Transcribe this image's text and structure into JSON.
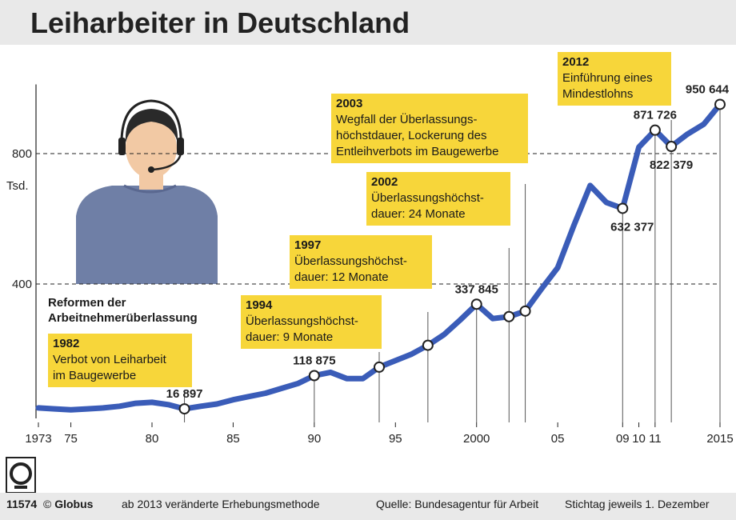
{
  "title": "Leiharbeiter in Deutschland",
  "chart_data": {
    "type": "line",
    "title": "Leiharbeiter in Deutschland",
    "ylabel": "Tsd.",
    "ylim": [
      0,
      1000
    ],
    "yticks": [
      400,
      800
    ],
    "x_tick_labels": [
      "1973",
      "75",
      "80",
      "85",
      "90",
      "95",
      "2000",
      "05",
      "09",
      "10",
      "11",
      "2015"
    ],
    "x_tick_years": [
      1973,
      1975,
      1980,
      1985,
      1990,
      1995,
      2000,
      2005,
      2009,
      2010,
      2011,
      2015
    ],
    "series": [
      {
        "name": "Leiharbeiter",
        "x": [
          1973,
          1974,
          1975,
          1976,
          1977,
          1978,
          1979,
          1980,
          1981,
          1982,
          1983,
          1984,
          1985,
          1986,
          1987,
          1988,
          1989,
          1990,
          1991,
          1992,
          1993,
          1994,
          1995,
          1996,
          1997,
          1998,
          1999,
          2000,
          2001,
          2002,
          2003,
          2004,
          2005,
          2006,
          2007,
          2008,
          2009,
          2010,
          2011,
          2012,
          2013,
          2014,
          2015
        ],
        "values": [
          20,
          17,
          14,
          17,
          20,
          25,
          34,
          37,
          30,
          17,
          25,
          32,
          45,
          55,
          65,
          80,
          95,
          119,
          129,
          110,
          110,
          145,
          165,
          185,
          212,
          245,
          290,
          338,
          294,
          300,
          317,
          385,
          450,
          580,
          702,
          650,
          632,
          820,
          872,
          822,
          860,
          890,
          951
        ]
      }
    ],
    "data_labels": [
      {
        "year": 1982,
        "text": "16 897"
      },
      {
        "year": 1990,
        "text": "118 875"
      },
      {
        "year": 2000,
        "text": "337 845"
      },
      {
        "year": 2009,
        "text": "632 377"
      },
      {
        "year": 2011,
        "text": "871 726"
      },
      {
        "year": 2012,
        "text": "822 379"
      },
      {
        "year": 2015,
        "text": "950 644"
      }
    ],
    "reform_markers": [
      1982,
      1994,
      1997,
      2002,
      2003,
      2012
    ]
  },
  "reforms_heading": "Reformen der\nArbeitnehmerüberlassung",
  "reforms": [
    {
      "year": "1982",
      "text": "Verbot von Leiharbeit\nim Baugewerbe"
    },
    {
      "year": "1994",
      "text": "Überlassungshöchst-\ndauer: 9 Monate"
    },
    {
      "year": "1997",
      "text": "Überlassungshöchst-\ndauer: 12 Monate"
    },
    {
      "year": "2002",
      "text": "Überlassungshöchst-\ndauer: 24 Monate"
    },
    {
      "year": "2003",
      "text": "Wegfall der Überlassungs-\nhöchstdauer, Lockerung des\nEntleihverbots im Baugewerbe"
    },
    {
      "year": "2012",
      "text": "Einführung eines\nMindestlohns"
    }
  ],
  "footer": {
    "code": "11574",
    "brand_symbol": "©",
    "brand": "Globus",
    "method_note": "ab 2013 veränderte Erhebungsmethode",
    "source": "Quelle: Bundesagentur für Arbeit",
    "stichtag": "Stichtag jeweils 1. Dezember"
  },
  "colors": {
    "line": "#3a5cb8",
    "note": "#f7d63a",
    "illustration": "#6f7fa6",
    "skin": "#f2c9a4"
  }
}
